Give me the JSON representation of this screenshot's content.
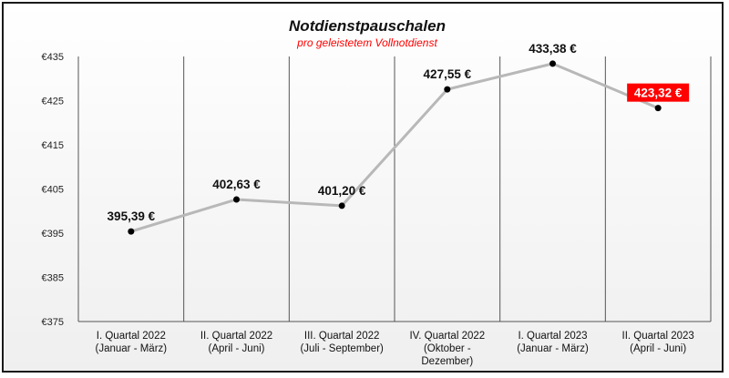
{
  "chart_data": {
    "type": "line",
    "title": "Notdienstpauschalen",
    "subtitle": "pro geleistetem Vollnotdienst",
    "xlabel": "",
    "ylabel": "",
    "categories": [
      [
        "I. Quartal 2022",
        "(Januar - März)"
      ],
      [
        "II. Quartal 2022",
        "(April - Juni)"
      ],
      [
        "III. Quartal 2022",
        "(Juli - September)"
      ],
      [
        "IV. Quartal 2022",
        "(Oktober -",
        "Dezember)"
      ],
      [
        "I. Quartal 2023",
        "(Januar - März)"
      ],
      [
        "II. Quartal 2023",
        "(April - Juni)"
      ]
    ],
    "values": [
      395.39,
      402.63,
      401.2,
      427.55,
      433.38,
      423.32
    ],
    "value_labels": [
      "395,39 €",
      "402,63 €",
      "401,20 €",
      "427,55 €",
      "433,38 €",
      "423,32 €"
    ],
    "highlight_index": 5,
    "ylim": [
      375,
      435
    ],
    "yticks": [
      375,
      385,
      395,
      405,
      415,
      425,
      435
    ],
    "ytick_labels": [
      "€375",
      "€385",
      "€395",
      "€405",
      "€415",
      "€425",
      "€435"
    ],
    "colors": {
      "line": "#b8b8b8",
      "marker": "#000000",
      "highlight": "#ff0000",
      "grid": "#555555"
    }
  }
}
